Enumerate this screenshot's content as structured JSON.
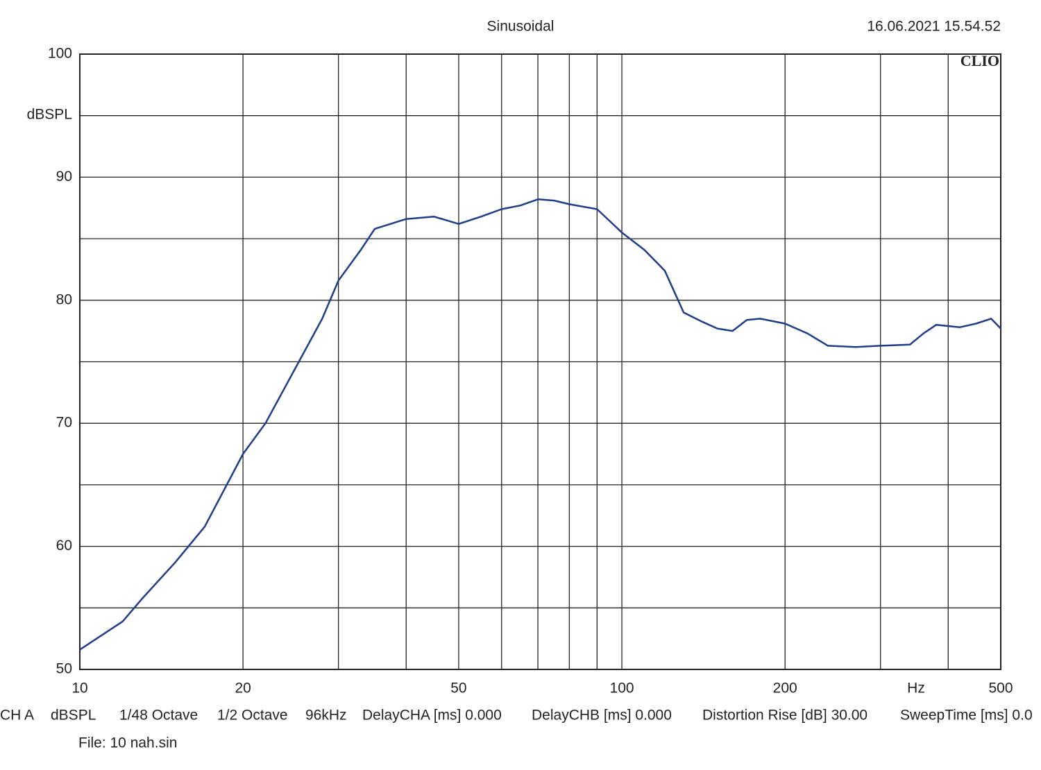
{
  "chart_data": {
    "type": "line",
    "title": "Sinusoidal",
    "timestamp": "16.06.2021 15.54.52",
    "brand": "CLIO",
    "x_label": "Hz",
    "y_label": "dBSPL",
    "x_scale": "log",
    "xlim": [
      10,
      500
    ],
    "xticks": [
      10,
      20,
      50,
      100,
      200,
      500
    ],
    "x_minor_ticks": [
      30,
      40,
      60,
      70,
      80,
      90,
      300,
      400
    ],
    "ylim": [
      50,
      100
    ],
    "yticks": [
      50,
      60,
      70,
      80,
      90,
      100
    ],
    "y_minor_ticks": [
      55,
      65,
      75,
      85,
      95
    ],
    "grid": true,
    "series": [
      {
        "name": "CH A",
        "color": "#1f3c88",
        "x": [
          10,
          12,
          13,
          15,
          17,
          20,
          22,
          25,
          28,
          30,
          33,
          35,
          40,
          45,
          50,
          55,
          60,
          65,
          70,
          75,
          80,
          90,
          100,
          110,
          120,
          130,
          140,
          150,
          160,
          170,
          180,
          200,
          220,
          240,
          270,
          300,
          340,
          360,
          380,
          420,
          450,
          480,
          500
        ],
        "values": [
          51.6,
          53.9,
          55.7,
          58.7,
          61.6,
          67.5,
          70.0,
          74.5,
          78.5,
          81.6,
          84.1,
          85.8,
          86.6,
          86.8,
          86.2,
          86.8,
          87.4,
          87.7,
          88.2,
          88.1,
          87.8,
          87.4,
          85.5,
          84.1,
          82.4,
          79.0,
          78.3,
          77.7,
          77.5,
          78.4,
          78.5,
          78.1,
          77.3,
          76.3,
          76.2,
          76.3,
          76.4,
          77.3,
          78.0,
          77.8,
          78.1,
          78.5,
          77.7
        ]
      }
    ],
    "footer": [
      "CH A",
      "dBSPL",
      "1/48 Octave",
      "1/2 Octave",
      "96kHz",
      "DelayCHA [ms] 0.000",
      "DelayCHB [ms] 0.000",
      "Distortion Rise [dB] 30.00",
      "SweepTime [ms] 0.0"
    ],
    "file": "File: 10 nah.sin"
  }
}
